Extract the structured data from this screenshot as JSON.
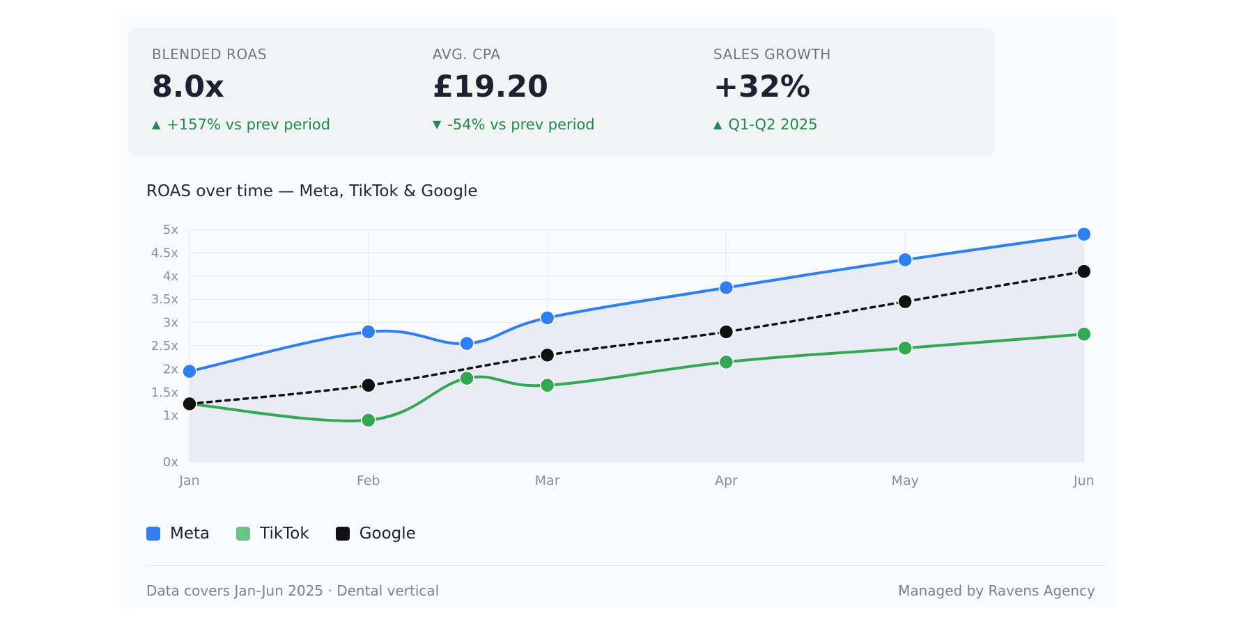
{
  "kpis": [
    {
      "label": "BLENDED ROAS",
      "value": "8.0x",
      "delta_icon": "▲",
      "delta": "+157% vs prev period"
    },
    {
      "label": "AVG. CPA",
      "value": "£19.20",
      "delta_icon": "▼",
      "delta": "-54% vs prev period"
    },
    {
      "label": "SALES GROWTH",
      "value": "+32%",
      "delta_icon": "▲",
      "delta": "Q1-Q2 2025"
    }
  ],
  "footer": {
    "left": "Data covers Jan-Jun 2025 · Dental vertical",
    "right": "Managed by Ravens Agency"
  },
  "colors": {
    "meta": "#2f7ff0",
    "tiktok": "#33a852",
    "google": "#111111",
    "positive": "#1f8a4c",
    "area_fill": "#e6e9f3"
  },
  "chart_data": {
    "type": "line",
    "title": "ROAS over time — Meta, TikTok & Google",
    "x_ticks": [
      "Jan",
      "Feb",
      "Mar",
      "Apr",
      "May",
      "Jun"
    ],
    "y_ticks": [
      "0x",
      "1x",
      "1.5x",
      "2x",
      "2.5x",
      "3x",
      "3.5x",
      "4x",
      "4.5x",
      "5x"
    ],
    "ylim": [
      0,
      5
    ],
    "grid": true,
    "legend_position": "bottom-left",
    "series": [
      {
        "name": "Meta",
        "color": "#2f7ff0",
        "dash": false,
        "area": true,
        "x": [
          0,
          1,
          1.55,
          2,
          3,
          4,
          5
        ],
        "y": [
          1.95,
          2.8,
          2.55,
          3.1,
          3.75,
          4.35,
          4.9
        ]
      },
      {
        "name": "TikTok",
        "color": "#33a852",
        "dash": false,
        "area": false,
        "x": [
          0,
          1,
          1.55,
          2,
          3,
          4,
          5
        ],
        "y": [
          1.25,
          0.9,
          1.8,
          1.65,
          2.15,
          2.45,
          2.75
        ]
      },
      {
        "name": "Google",
        "color": "#111111",
        "dash": true,
        "area": false,
        "x": [
          0,
          1,
          2,
          3,
          4,
          5
        ],
        "y": [
          1.25,
          1.65,
          2.3,
          2.8,
          3.45,
          4.1
        ]
      }
    ]
  }
}
